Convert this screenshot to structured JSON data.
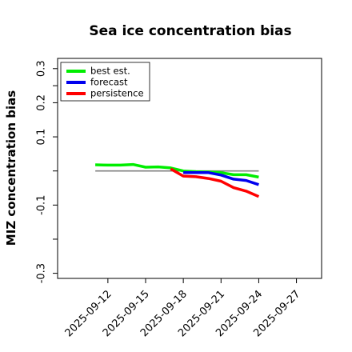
{
  "chart_data": {
    "type": "line",
    "title": "Sea ice concentration bias",
    "ylabel": "MIZ concentration bias",
    "xlabel": "",
    "xlim": [
      "2025-09-08",
      "2025-09-29"
    ],
    "ylim": [
      -0.315,
      0.33
    ],
    "y_ticks": [
      {
        "value": 0.3,
        "label": "0.3"
      },
      {
        "value": 0.25,
        "label": ""
      },
      {
        "value": 0.2,
        "label": "0.2"
      },
      {
        "value": 0.1,
        "label": "0.1"
      },
      {
        "value": 0.0,
        "label": ""
      },
      {
        "value": -0.1,
        "label": "-0.1"
      },
      {
        "value": -0.2,
        "label": ""
      },
      {
        "value": -0.3,
        "label": "-0.3"
      }
    ],
    "x_ticks": [
      {
        "date": "2025-09-12",
        "label": "2025-09-12",
        "color": "#000000"
      },
      {
        "date": "2025-09-15",
        "label": "2025-09-15",
        "color": "#000000"
      },
      {
        "date": "2025-09-18",
        "label": "2025-09-18",
        "color": "#228B22"
      },
      {
        "date": "2025-09-21",
        "label": "2025-09-21",
        "color": "#000000"
      },
      {
        "date": "2025-09-24",
        "label": "2025-09-24",
        "color": "#000000"
      },
      {
        "date": "2025-09-27",
        "label": "2025-09-27",
        "color": "#000000"
      }
    ],
    "zero_line": {
      "from": "2025-09-11",
      "to": "2025-09-24",
      "value": 0.0,
      "color": "#808080"
    },
    "legend_position": "top-left",
    "series": [
      {
        "name": "best est.",
        "color": "#00ee00",
        "x": [
          "2025-09-11",
          "2025-09-12",
          "2025-09-13",
          "2025-09-14",
          "2025-09-15",
          "2025-09-16",
          "2025-09-17",
          "2025-09-18",
          "2025-09-19",
          "2025-09-20",
          "2025-09-21",
          "2025-09-22",
          "2025-09-23",
          "2025-09-24"
        ],
        "values": [
          0.018,
          0.017,
          0.017,
          0.019,
          0.011,
          0.012,
          0.009,
          0.0,
          -0.002,
          -0.003,
          -0.005,
          -0.011,
          -0.011,
          -0.018
        ]
      },
      {
        "name": "forecast",
        "color": "#0000ee",
        "x": [
          "2025-09-18",
          "2025-09-19",
          "2025-09-20",
          "2025-09-21",
          "2025-09-22",
          "2025-09-23",
          "2025-09-24"
        ],
        "values": [
          -0.005,
          -0.005,
          -0.005,
          -0.012,
          -0.024,
          -0.028,
          -0.04
        ]
      },
      {
        "name": "persistence",
        "color": "#ff0000",
        "x": [
          "2025-09-17",
          "2025-09-18",
          "2025-09-19",
          "2025-09-20",
          "2025-09-21",
          "2025-09-22",
          "2025-09-23",
          "2025-09-24"
        ],
        "values": [
          0.006,
          -0.015,
          -0.017,
          -0.022,
          -0.03,
          -0.049,
          -0.059,
          -0.075
        ]
      }
    ]
  }
}
